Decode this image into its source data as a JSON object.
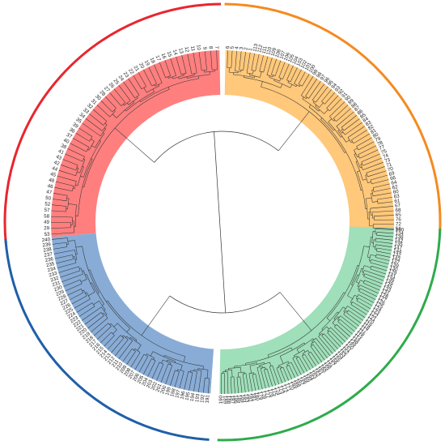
{
  "clusters": [
    {
      "name": "",
      "color": "#ff7f7f",
      "band_color": "#e8262e",
      "leaves": [
        "53",
        "29",
        "49",
        "58",
        "57",
        "52",
        "50",
        "47",
        "46",
        "48",
        "45",
        "44",
        "42",
        "43",
        "41",
        "38",
        "40",
        "37",
        "36",
        "39",
        "35",
        "34",
        "33",
        "32",
        "31",
        "30",
        "28",
        "27",
        "26",
        "25",
        "24",
        "23",
        "22",
        "21",
        "20",
        "19",
        "18",
        "17",
        "16",
        "15",
        "14",
        "13",
        "12",
        "11",
        "10",
        "9",
        "8",
        "7"
      ]
    },
    {
      "name": "",
      "color": "#ffc87a",
      "band_color": "#f58a1f",
      "leaves": [
        "6",
        "5",
        "4",
        "3",
        "2",
        "1",
        "113",
        "112",
        "111",
        "110",
        "109",
        "108",
        "107",
        "106",
        "105",
        "104",
        "103",
        "102",
        "101",
        "100",
        "99",
        "98",
        "97",
        "96",
        "95",
        "94",
        "93",
        "92",
        "91",
        "90",
        "89",
        "88",
        "87",
        "86",
        "85",
        "84",
        "83",
        "82",
        "81",
        "80",
        "79",
        "78",
        "77",
        "75",
        "74",
        "73",
        "71",
        "70",
        "69",
        "66",
        "64",
        "62",
        "60",
        "63",
        "61",
        "67",
        "68",
        "65",
        "76",
        "72",
        "56"
      ]
    },
    {
      "name": "",
      "color": "#9fdfb9",
      "band_color": "#2eab4b",
      "leaves": [
        "140",
        "134",
        "138",
        "142",
        "135",
        "147",
        "144",
        "132",
        "143",
        "137",
        "139",
        "130",
        "129",
        "141",
        "136",
        "146",
        "145",
        "133",
        "131",
        "128",
        "127",
        "126",
        "125",
        "124",
        "123",
        "122",
        "121",
        "120",
        "119",
        "118",
        "117",
        "116",
        "115",
        "114",
        "148",
        "149",
        "150",
        "151",
        "152",
        "153",
        "154",
        "155",
        "156",
        "157",
        "158",
        "159",
        "160",
        "161",
        "162",
        "163",
        "164",
        "165",
        "166",
        "167",
        "168",
        "169",
        "170",
        "171",
        "172",
        "173",
        "174",
        "175",
        "176",
        "177",
        "178",
        "179",
        "180",
        "181",
        "182",
        "183",
        "184",
        "185",
        "186",
        "187",
        "188",
        "189",
        "190"
      ]
    },
    {
      "name": "",
      "color": "#88acd6",
      "band_color": "#1f5fa8",
      "leaves": [
        "191",
        "192",
        "193",
        "194",
        "195",
        "196",
        "197",
        "198",
        "199",
        "200",
        "201",
        "202",
        "203",
        "204",
        "205",
        "206",
        "207",
        "208",
        "209",
        "210",
        "211",
        "212",
        "213",
        "214",
        "215",
        "216",
        "217",
        "218",
        "219",
        "220",
        "221",
        "222",
        "223",
        "224",
        "225",
        "226",
        "227",
        "228",
        "229",
        "230",
        "231",
        "232",
        "233",
        "234",
        "235",
        "236",
        "237",
        "238",
        "239",
        "240"
      ]
    }
  ]
}
